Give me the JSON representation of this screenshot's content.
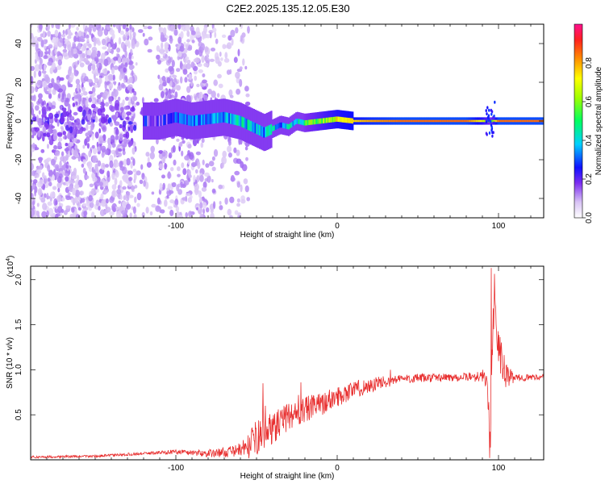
{
  "title": "C2E2.2025.135.12.05.E30",
  "chart_data": [
    {
      "type": "heatmap",
      "xlabel": "Height of straight line (km)",
      "ylabel": "Frequency (Hz)",
      "xlim": [
        -190,
        128
      ],
      "ylim": [
        -50,
        50
      ],
      "xticks": [
        -100,
        0,
        100
      ],
      "yticks": [
        -40,
        -20,
        0,
        20,
        40
      ],
      "xtick_labels": [
        "-100",
        "0",
        "100"
      ],
      "ytick_labels": [
        "-40",
        "-20",
        "0",
        "20",
        "40"
      ],
      "colorbar": {
        "label": "Normalized spectral amplitude",
        "range": [
          0,
          1
        ],
        "ticks": [
          0.0,
          0.2,
          0.4,
          0.6,
          0.8
        ],
        "tick_labels": [
          "0.0",
          "0.2",
          "0.4",
          "0.6",
          "0.8"
        ]
      },
      "ridge": {
        "x": [
          -110,
          -100,
          -90,
          -80,
          -70,
          -60,
          -55,
          -50,
          -45,
          -40,
          -35,
          -30,
          -25,
          -20,
          -10,
          0,
          10,
          20,
          40,
          60,
          80,
          90,
          95,
          100,
          110,
          128
        ],
        "y": [
          0,
          2,
          0,
          1,
          2,
          0,
          -2,
          -4,
          -6,
          -4,
          -2,
          -3,
          0,
          -1,
          0,
          1,
          0,
          0,
          0,
          0,
          0,
          0,
          0,
          0,
          0,
          0
        ],
        "amplitude": [
          0.2,
          0.25,
          0.3,
          0.3,
          0.35,
          0.4,
          0.4,
          0.35,
          0.35,
          0.4,
          0.35,
          0.4,
          0.45,
          0.5,
          0.6,
          0.7,
          0.75,
          0.8,
          0.85,
          0.85,
          0.85,
          0.7,
          0.5,
          0.85,
          0.85,
          0.85
        ]
      }
    },
    {
      "type": "line",
      "xlabel": "Height of straight line (km)",
      "ylabel": "SNR (10 * v/v)",
      "y_multiplier": "(x10",
      "y_multiplier_exp": "4",
      "y_multiplier_close": ")",
      "xlim": [
        -190,
        128
      ],
      "ylim": [
        0,
        21500
      ],
      "xticks": [
        -100,
        0,
        100
      ],
      "yticks": [
        5000,
        10000,
        15000,
        20000
      ],
      "xtick_labels": [
        "-100",
        "0",
        "100"
      ],
      "ytick_labels": [
        "0.5",
        "1.0",
        "1.5",
        "2.0"
      ],
      "color": "#e83030",
      "envelope": {
        "x": [
          -190,
          -150,
          -120,
          -100,
          -80,
          -65,
          -55,
          -50,
          -45,
          -40,
          -30,
          -20,
          -10,
          0,
          10,
          20,
          30,
          40,
          60,
          80,
          90,
          93,
          95,
          97,
          100,
          105,
          110,
          128
        ],
        "y": [
          300,
          400,
          700,
          900,
          700,
          900,
          1500,
          2500,
          3000,
          3500,
          4800,
          5500,
          6200,
          7000,
          7800,
          8200,
          8700,
          9000,
          9100,
          9200,
          9300,
          9000,
          1000,
          20000,
          12000,
          9200,
          9100,
          9200
        ]
      },
      "noise": {
        "x": [
          -190,
          -120,
          -100,
          -80,
          -60,
          -50,
          -40,
          -20,
          0,
          20,
          40,
          80,
          90,
          100,
          110,
          128
        ],
        "amp": [
          120,
          150,
          250,
          400,
          700,
          2000,
          1700,
          1500,
          1100,
          900,
          500,
          450,
          700,
          2500,
          400,
          300
        ]
      },
      "spikes": [
        {
          "x": -46,
          "y": 8500
        },
        {
          "x": -44.5,
          "y": 6000
        },
        {
          "x": -41,
          "y": 4500
        },
        {
          "x": -35,
          "y": 5500
        },
        {
          "x": -30,
          "y": 6200
        },
        {
          "x": -24,
          "y": 7200
        },
        {
          "x": -22.5,
          "y": 8600
        },
        {
          "x": -19,
          "y": 5200
        },
        {
          "x": -14,
          "y": 6800
        },
        {
          "x": 10,
          "y": 8200
        },
        {
          "x": 33,
          "y": 10000
        },
        {
          "x": 95.5,
          "y": 21300
        },
        {
          "x": 97,
          "y": 14500
        },
        {
          "x": 94.5,
          "y": 200
        }
      ]
    }
  ]
}
